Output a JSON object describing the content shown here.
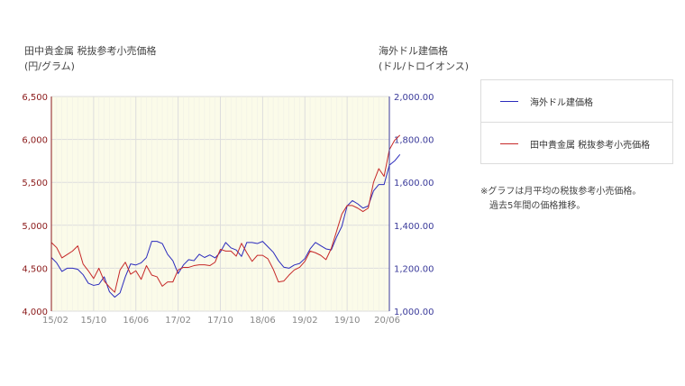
{
  "chart_data": {
    "type": "line",
    "left_axis": {
      "title_line1": "田中貴金属 税抜参考小売価格",
      "title_line2": "(円/グラム)",
      "range": [
        4000,
        6500
      ],
      "ticks": [
        "4,000",
        "4,500",
        "5,000",
        "5,500",
        "6,000",
        "6,500"
      ],
      "color": "#8b1a1a"
    },
    "right_axis": {
      "title_line1": "海外ドル建価格",
      "title_line2": "(ドル/トロイオンス)",
      "range": [
        1000,
        2000
      ],
      "ticks": [
        "1,000.00",
        "1,200.00",
        "1,400.00",
        "1,600.00",
        "1,800.00",
        "2,000.00"
      ],
      "color": "#3a3a9a"
    },
    "x_tick_labels": [
      "15/02",
      "15/10",
      "16/06",
      "17/02",
      "17/10",
      "18/06",
      "19/02",
      "19/10",
      "20/06"
    ],
    "x_tick_months": [
      0,
      8,
      16,
      24,
      32,
      40,
      48,
      56,
      64
    ],
    "x_range_months": [
      0,
      64
    ],
    "grid": true,
    "plot_background": "#fbfbe9",
    "legend_placement": "right",
    "series": [
      {
        "name": "海外ドル建価格",
        "axis": "right",
        "color": "#2b2bbd",
        "values": [
          1250,
          1225,
          1185,
          1200,
          1200,
          1195,
          1170,
          1130,
          1120,
          1125,
          1160,
          1090,
          1065,
          1085,
          1160,
          1220,
          1215,
          1225,
          1250,
          1325,
          1325,
          1315,
          1265,
          1235,
          1175,
          1215,
          1240,
          1235,
          1265,
          1250,
          1262,
          1248,
          1275,
          1320,
          1295,
          1285,
          1255,
          1320,
          1320,
          1315,
          1325,
          1300,
          1275,
          1235,
          1205,
          1200,
          1215,
          1222,
          1245,
          1290,
          1320,
          1305,
          1290,
          1285,
          1345,
          1395,
          1490,
          1515,
          1500,
          1480,
          1490,
          1560,
          1590,
          1590,
          1680,
          1700,
          1730
        ]
      },
      {
        "name": "田中貴金属 税抜参考小売価格",
        "axis": "left",
        "color": "#c62828",
        "values": [
          4800,
          4740,
          4620,
          4660,
          4700,
          4760,
          4550,
          4470,
          4380,
          4500,
          4350,
          4280,
          4220,
          4480,
          4570,
          4430,
          4470,
          4370,
          4530,
          4420,
          4400,
          4290,
          4340,
          4340,
          4480,
          4510,
          4510,
          4530,
          4540,
          4540,
          4530,
          4570,
          4720,
          4700,
          4700,
          4640,
          4790,
          4680,
          4580,
          4650,
          4650,
          4610,
          4490,
          4340,
          4350,
          4420,
          4480,
          4510,
          4580,
          4700,
          4680,
          4650,
          4600,
          4730,
          4930,
          5130,
          5230,
          5230,
          5200,
          5160,
          5200,
          5500,
          5660,
          5570,
          5880,
          5990,
          6050
        ]
      }
    ]
  },
  "legend": {
    "items": [
      {
        "label": "海外ドル建価格",
        "color": "#2b2bbd"
      },
      {
        "label": "田中貴金属 税抜参考小売価格",
        "color": "#c62828"
      }
    ]
  },
  "note": {
    "line1": "※グラフは月平均の税抜参考小売価格。",
    "line2": "過去5年間の価格推移。"
  }
}
